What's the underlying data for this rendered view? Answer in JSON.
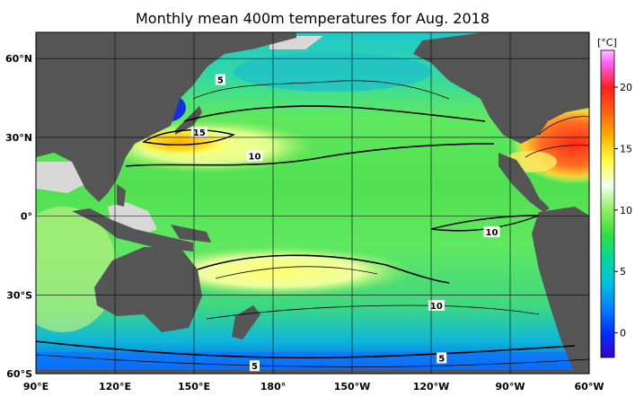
{
  "title": "Monthly mean 400m temperatures for Aug. 2018",
  "map": {
    "lon_range_deg": [
      90,
      300
    ],
    "lat_range_deg": [
      -60,
      70
    ],
    "x_ticks": [
      "90°E",
      "120°E",
      "150°E",
      "180°",
      "150°W",
      "120°W",
      "90°W",
      "60°W"
    ],
    "y_ticks": [
      "60°N",
      "30°N",
      "0°",
      "30°S",
      "60°S"
    ],
    "colors": {
      "land": "#555555",
      "no_data": "#d8d8d8",
      "grid": "#000000"
    }
  },
  "colorbar": {
    "unit": "[°C]",
    "range": [
      -2,
      23
    ],
    "ticks": [
      "20",
      "15",
      "10",
      "5",
      "0"
    ],
    "tick_values": [
      20,
      15,
      10,
      5,
      0
    ],
    "stops": [
      {
        "v": -2,
        "c": "#3a00c8"
      },
      {
        "v": 0,
        "c": "#0030ff"
      },
      {
        "v": 2,
        "c": "#0080ff"
      },
      {
        "v": 4,
        "c": "#00c0e0"
      },
      {
        "v": 6,
        "c": "#00d8a0"
      },
      {
        "v": 8,
        "c": "#30e040"
      },
      {
        "v": 10,
        "c": "#90f060"
      },
      {
        "v": 12,
        "c": "#f0fff0"
      },
      {
        "v": 14,
        "c": "#ffff40"
      },
      {
        "v": 16,
        "c": "#ffb000"
      },
      {
        "v": 18,
        "c": "#ff6010"
      },
      {
        "v": 20,
        "c": "#ff2020"
      },
      {
        "v": 22,
        "c": "#ff60ff"
      },
      {
        "v": 23,
        "c": "#ffc0ff"
      }
    ]
  },
  "contour_labels": [
    {
      "text": "5",
      "lon": 160,
      "lat": 52
    },
    {
      "text": "15",
      "lon": 152,
      "lat": 32
    },
    {
      "text": "10",
      "lon": 173,
      "lat": 23
    },
    {
      "text": "10",
      "lon": 263,
      "lat": -6
    },
    {
      "text": "10",
      "lon": 242,
      "lat": -34
    },
    {
      "text": "5",
      "lon": 173,
      "lat": -57
    },
    {
      "text": "5",
      "lon": 244,
      "lat": -54
    }
  ]
}
